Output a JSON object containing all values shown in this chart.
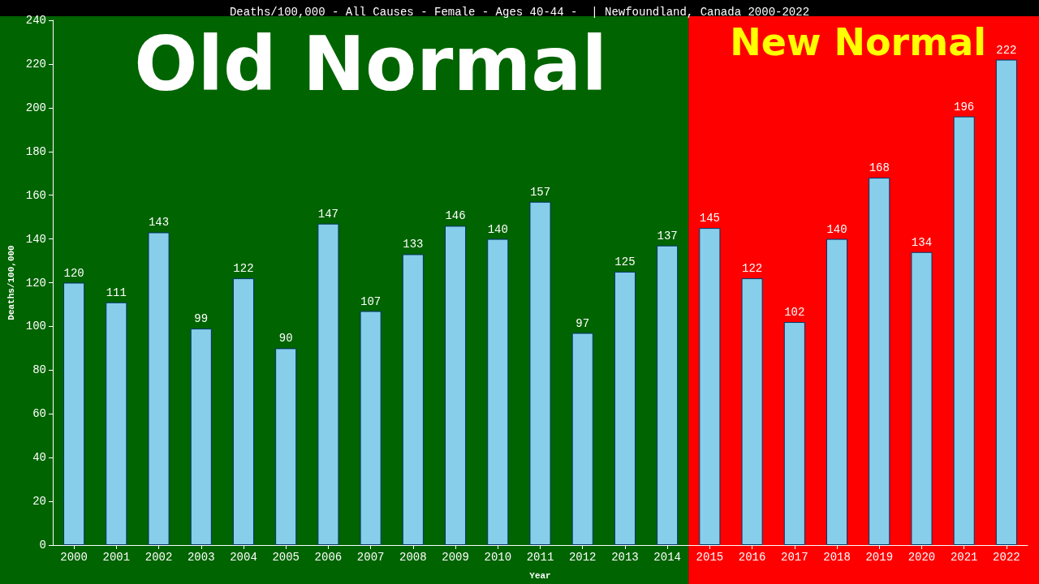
{
  "chart_data": {
    "type": "bar",
    "title": "Deaths/100,000 - All Causes - Female - Ages 40-44 -  | Newfoundland, Canada 2000-2022",
    "xlabel": "Year",
    "ylabel": "Deaths/100,000",
    "categories": [
      "2000",
      "2001",
      "2002",
      "2003",
      "2004",
      "2005",
      "2006",
      "2007",
      "2008",
      "2009",
      "2010",
      "2011",
      "2012",
      "2013",
      "2014",
      "2015",
      "2016",
      "2017",
      "2018",
      "2019",
      "2020",
      "2021",
      "2022"
    ],
    "values": [
      120,
      111,
      143,
      99,
      122,
      90,
      147,
      107,
      133,
      146,
      140,
      157,
      97,
      125,
      137,
      145,
      122,
      102,
      140,
      168,
      134,
      196,
      222
    ],
    "color": "#87ceeb",
    "ylim": [
      0,
      240
    ],
    "yticks": [
      0,
      20,
      40,
      60,
      80,
      100,
      120,
      140,
      160,
      180,
      200,
      220,
      240
    ],
    "bands": [
      {
        "axis": "x",
        "from": "2000",
        "to": "2014",
        "label": "Old Normal",
        "color": "#006400"
      },
      {
        "axis": "x",
        "from": "2015",
        "to": "2022",
        "label": "New Normal",
        "color": "#ff0000"
      }
    ],
    "data_labels": true,
    "grid": false
  }
}
